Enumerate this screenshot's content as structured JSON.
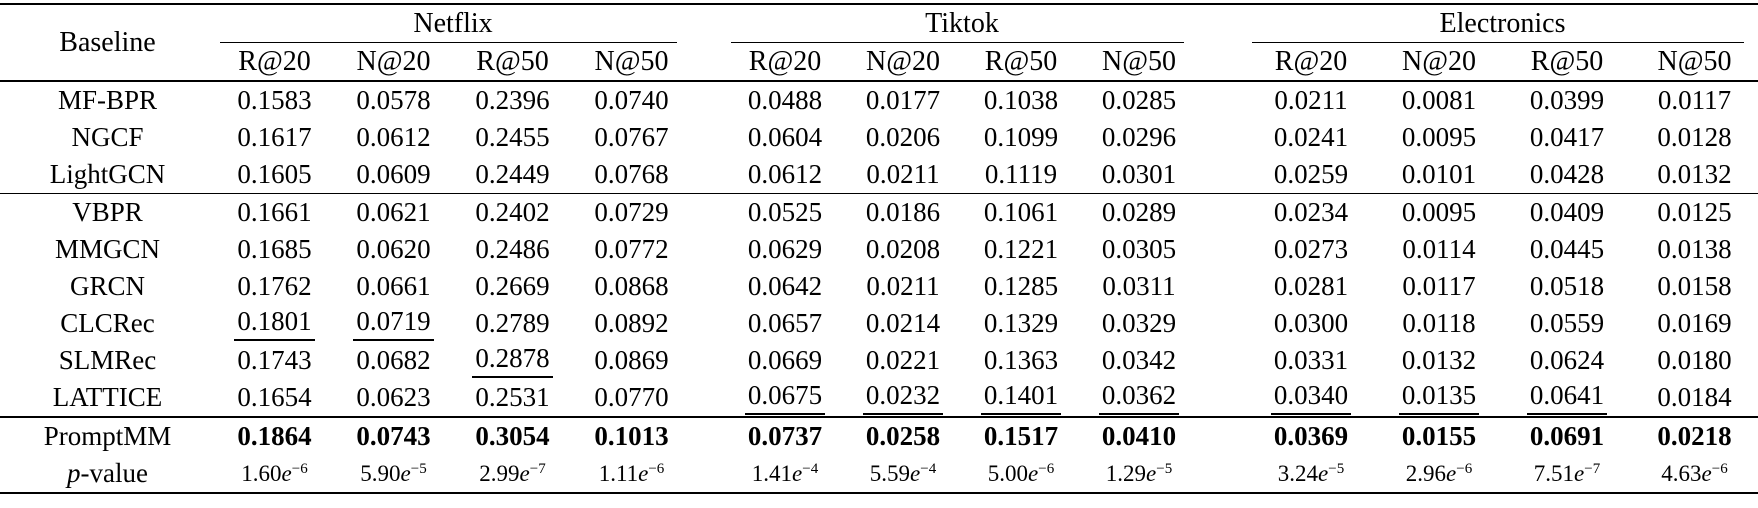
{
  "table": {
    "corner_header": "Baseline",
    "groups": [
      {
        "label": "Netflix",
        "metrics": [
          "R@20",
          "N@20",
          "R@50",
          "N@50"
        ]
      },
      {
        "label": "Tiktok",
        "metrics": [
          "R@20",
          "N@20",
          "R@50",
          "N@50"
        ]
      },
      {
        "label": "Electronics",
        "metrics": [
          "R@20",
          "N@20",
          "R@50",
          "N@50"
        ]
      }
    ],
    "rows": [
      {
        "name": "MF-BPR",
        "values": [
          "0.1583",
          "0.0578",
          "0.2396",
          "0.0740",
          "0.0488",
          "0.0177",
          "0.1038",
          "0.0285",
          "0.0211",
          "0.0081",
          "0.0399",
          "0.0117"
        ]
      },
      {
        "name": "NGCF",
        "values": [
          "0.1617",
          "0.0612",
          "0.2455",
          "0.0767",
          "0.0604",
          "0.0206",
          "0.1099",
          "0.0296",
          "0.0241",
          "0.0095",
          "0.0417",
          "0.0128"
        ]
      },
      {
        "name": "LightGCN",
        "values": [
          "0.1605",
          "0.0609",
          "0.2449",
          "0.0768",
          "0.0612",
          "0.0211",
          "0.1119",
          "0.0301",
          "0.0259",
          "0.0101",
          "0.0428",
          "0.0132"
        ]
      },
      {
        "name": "VBPR",
        "rule_above": "thin",
        "values": [
          "0.1661",
          "0.0621",
          "0.2402",
          "0.0729",
          "0.0525",
          "0.0186",
          "0.1061",
          "0.0289",
          "0.0234",
          "0.0095",
          "0.0409",
          "0.0125"
        ]
      },
      {
        "name": "MMGCN",
        "values": [
          "0.1685",
          "0.0620",
          "0.2486",
          "0.0772",
          "0.0629",
          "0.0208",
          "0.1221",
          "0.0305",
          "0.0273",
          "0.0114",
          "0.0445",
          "0.0138"
        ]
      },
      {
        "name": "GRCN",
        "values": [
          "0.1762",
          "0.0661",
          "0.2669",
          "0.0868",
          "0.0642",
          "0.0211",
          "0.1285",
          "0.0311",
          "0.0281",
          "0.0117",
          "0.0518",
          "0.0158"
        ]
      },
      {
        "name": "CLCRec",
        "underline": [
          0,
          1
        ],
        "values": [
          "0.1801",
          "0.0719",
          "0.2789",
          "0.0892",
          "0.0657",
          "0.0214",
          "0.1329",
          "0.0329",
          "0.0300",
          "0.0118",
          "0.0559",
          "0.0169"
        ]
      },
      {
        "name": "SLMRec",
        "underline": [
          2
        ],
        "values": [
          "0.1743",
          "0.0682",
          "0.2878",
          "0.0869",
          "0.0669",
          "0.0221",
          "0.1363",
          "0.0342",
          "0.0331",
          "0.0132",
          "0.0624",
          "0.0180"
        ]
      },
      {
        "name": "LATTICE",
        "underline": [
          4,
          5,
          6,
          7,
          8,
          9,
          10
        ],
        "values": [
          "0.1654",
          "0.0623",
          "0.2531",
          "0.0770",
          "0.0675",
          "0.0232",
          "0.1401",
          "0.0362",
          "0.0340",
          "0.0135",
          "0.0641",
          "0.0184"
        ]
      },
      {
        "name": "PromptMM",
        "rule_above": "thick",
        "bold": true,
        "values": [
          "0.1864",
          "0.0743",
          "0.3054",
          "0.1013",
          "0.0737",
          "0.0258",
          "0.1517",
          "0.0410",
          "0.0369",
          "0.0155",
          "0.0691",
          "0.0218"
        ]
      },
      {
        "name": "p-value",
        "type": "pvalue",
        "label_italic": "p",
        "label_rest": "-value",
        "pcells": [
          {
            "m": "1.60",
            "e": "e",
            "exp": "−6"
          },
          {
            "m": "5.90",
            "e": "e",
            "exp": "−5"
          },
          {
            "m": "2.99",
            "e": "e",
            "exp": "−7"
          },
          {
            "m": "1.11",
            "e": "e",
            "exp": "−6"
          },
          {
            "m": "1.41",
            "e": "e",
            "exp": "−4"
          },
          {
            "m": "5.59",
            "e": "e",
            "exp": "−4"
          },
          {
            "m": "5.00",
            "e": "e",
            "exp": "−6"
          },
          {
            "m": "1.29",
            "e": "e",
            "exp": "−5"
          },
          {
            "m": "3.24",
            "e": "e",
            "exp": "−5"
          },
          {
            "m": "2.96",
            "e": "e",
            "exp": "−6"
          },
          {
            "m": "7.51",
            "e": "e",
            "exp": "−7"
          },
          {
            "m": "4.63",
            "e": "e",
            "exp": "−6"
          }
        ]
      }
    ]
  }
}
